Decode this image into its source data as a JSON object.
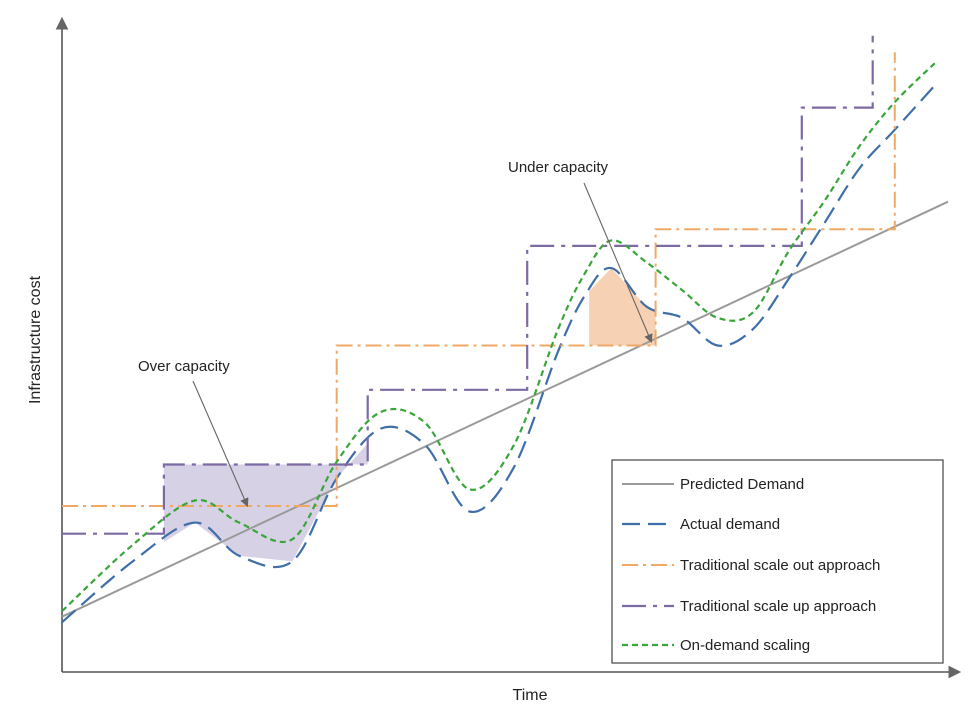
{
  "chart_data": {
    "type": "line",
    "xlabel": "Time",
    "ylabel": "Infrastructure  cost",
    "x_ticks": "none",
    "y_ticks": "none",
    "legend_position": "bottom-right",
    "colors": {
      "predicted": "#9a9a9a",
      "actual": "#3f6fa8",
      "scale_out": "#f0a864",
      "scale_up": "#7d6aa3",
      "on_demand": "#3aa63a",
      "over_fill": "#c9c2dd",
      "under_fill": "#f6c9a6"
    },
    "series": [
      {
        "name": "Predicted Demand",
        "style": "solid",
        "x": [
          0,
          100
        ],
        "y": [
          10,
          85
        ]
      },
      {
        "name": "Actual demand",
        "style": "long-dash",
        "x": [
          0,
          8,
          15,
          20,
          26,
          31,
          36,
          41,
          46,
          51,
          56,
          59,
          62,
          66,
          70,
          74,
          78,
          82,
          86,
          90,
          94,
          98.5
        ],
        "y": [
          9,
          20,
          27,
          21,
          20,
          35,
          44,
          41,
          29,
          37,
          58,
          68,
          73,
          66,
          64,
          59,
          62,
          71,
          81,
          91,
          98,
          106
        ]
      },
      {
        "name": "Traditional scale out approach",
        "style": "dash-dot",
        "x": [
          0,
          31,
          31,
          67,
          67,
          94,
          94
        ],
        "y": [
          30,
          30,
          59,
          59,
          80,
          80,
          112
        ]
      },
      {
        "name": "Traditional scale up approach",
        "style": "dash-dot-long",
        "x": [
          0,
          11.5,
          11.5,
          34.5,
          34.5,
          52.5,
          52.5,
          83.5,
          83.5,
          91.5,
          91.5
        ],
        "y": [
          25,
          25,
          37.5,
          37.5,
          51,
          51,
          77,
          77,
          102,
          102,
          115
        ]
      },
      {
        "name": "On-demand scaling",
        "style": "short-dash",
        "x": [
          0,
          8,
          15,
          20,
          26,
          31,
          36,
          41,
          46,
          51,
          56,
          59,
          62,
          66,
          70,
          74,
          78,
          82,
          86,
          90,
          94,
          98.5
        ],
        "y": [
          11,
          23,
          31,
          27,
          24,
          38,
          47,
          45,
          33,
          41,
          62,
          72,
          78,
          74,
          69,
          64,
          65,
          76,
          85,
          95,
          103,
          110
        ]
      }
    ],
    "annotations": [
      {
        "text": "Over capacity"
      },
      {
        "text": "Under capacity"
      }
    ]
  }
}
